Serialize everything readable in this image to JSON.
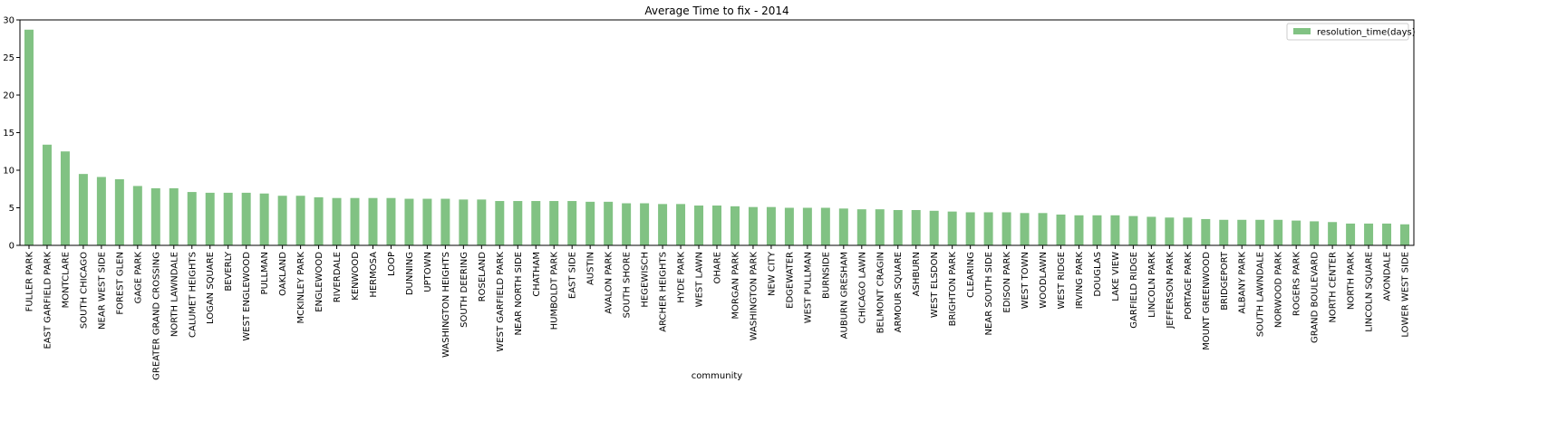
{
  "chart_data": {
    "type": "bar",
    "title": "Average Time to fix - 2014",
    "xlabel": "community",
    "ylabel": "",
    "ylim": [
      0,
      30
    ],
    "yticks": [
      0,
      5,
      10,
      15,
      20,
      25,
      30
    ],
    "legend": {
      "label": "resolution_time(days)",
      "position": "top-right"
    },
    "bar_color": "#81c283",
    "categories": [
      "FULLER PARK",
      "EAST GARFIELD PARK",
      "MONTCLARE",
      "SOUTH CHICAGO",
      "NEAR WEST SIDE",
      "FOREST GLEN",
      "GAGE PARK",
      "GREATER GRAND CROSSING",
      "NORTH LAWNDALE",
      "CALUMET HEIGHTS",
      "LOGAN SQUARE",
      "BEVERLY",
      "WEST ENGLEWOOD",
      "PULLMAN",
      "OAKLAND",
      "MCKINLEY PARK",
      "ENGLEWOOD",
      "RIVERDALE",
      "KENWOOD",
      "HERMOSA",
      "LOOP",
      "DUNNING",
      "UPTOWN",
      "WASHINGTON HEIGHTS",
      "SOUTH DEERING",
      "ROSELAND",
      "WEST GARFIELD PARK",
      "NEAR NORTH SIDE",
      "CHATHAM",
      "HUMBOLDT PARK",
      "EAST SIDE",
      "AUSTIN",
      "AVALON PARK",
      "SOUTH SHORE",
      "HEGEWISCH",
      "ARCHER HEIGHTS",
      "HYDE PARK",
      "WEST LAWN",
      "OHARE",
      "MORGAN PARK",
      "WASHINGTON PARK",
      "NEW CITY",
      "EDGEWATER",
      "WEST PULLMAN",
      "BURNSIDE",
      "AUBURN GRESHAM",
      "CHICAGO LAWN",
      "BELMONT CRAGIN",
      "ARMOUR SQUARE",
      "ASHBURN",
      "WEST ELSDON",
      "BRIGHTON PARK",
      "CLEARING",
      "NEAR SOUTH SIDE",
      "EDISON PARK",
      "WEST TOWN",
      "WOODLAWN",
      "WEST RIDGE",
      "IRVING PARK",
      "DOUGLAS",
      "LAKE VIEW",
      "GARFIELD RIDGE",
      "LINCOLN PARK",
      "JEFFERSON PARK",
      "PORTAGE PARK",
      "MOUNT GREENWOOD",
      "BRIDGEPORT",
      "ALBANY PARK",
      "SOUTH LAWNDALE",
      "NORWOOD PARK",
      "ROGERS PARK",
      "GRAND BOULEVARD",
      "NORTH CENTER",
      "NORTH PARK",
      "LINCOLN SQUARE",
      "AVONDALE",
      "LOWER WEST SIDE"
    ],
    "values": [
      28.7,
      13.4,
      12.5,
      9.5,
      9.1,
      8.8,
      7.9,
      7.6,
      7.6,
      7.1,
      7.0,
      7.0,
      7.0,
      6.9,
      6.6,
      6.6,
      6.4,
      6.3,
      6.3,
      6.3,
      6.3,
      6.2,
      6.2,
      6.2,
      6.1,
      6.1,
      5.9,
      5.9,
      5.9,
      5.9,
      5.9,
      5.8,
      5.8,
      5.6,
      5.6,
      5.5,
      5.5,
      5.3,
      5.3,
      5.2,
      5.1,
      5.1,
      5.0,
      5.0,
      5.0,
      4.9,
      4.8,
      4.8,
      4.7,
      4.7,
      4.6,
      4.5,
      4.4,
      4.4,
      4.4,
      4.3,
      4.3,
      4.1,
      4.0,
      4.0,
      4.0,
      3.9,
      3.8,
      3.7,
      3.7,
      3.5,
      3.4,
      3.4,
      3.4,
      3.4,
      3.3,
      3.2,
      3.1,
      2.9,
      2.9,
      2.9,
      2.8
    ]
  }
}
